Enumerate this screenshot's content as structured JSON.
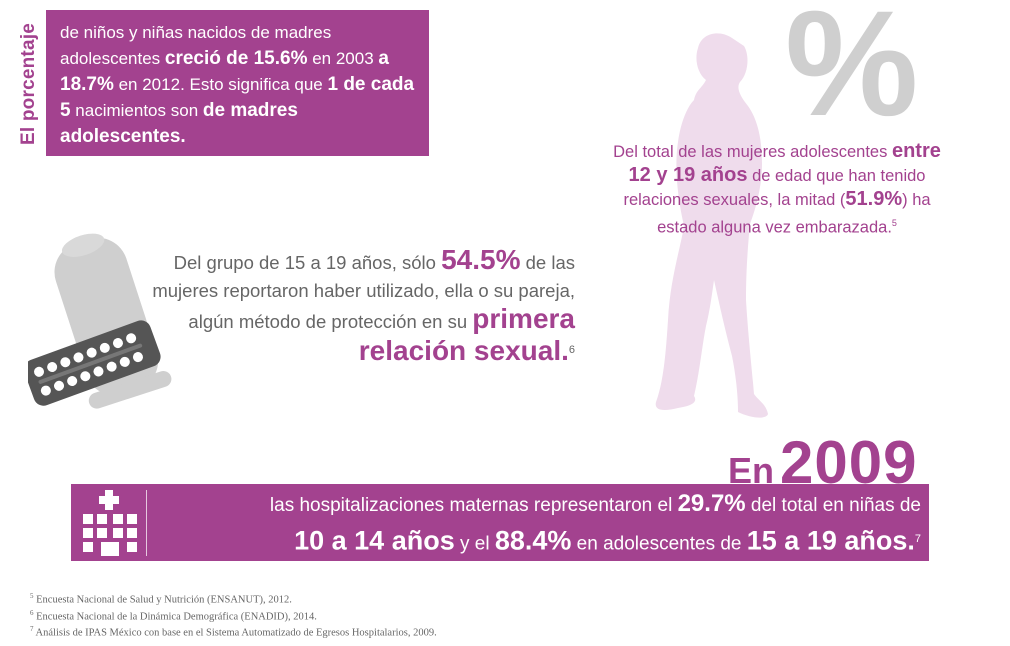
{
  "top_block": {
    "vertical_label": "El porcentaje",
    "t1": "de niños y niñas nacidos de madres adolescentes ",
    "t2": "creció de 15.6%",
    "t3": " en 2003 ",
    "t4": "a 18.7%",
    "t5": " en 2012",
    "t6": ". Esto significa que ",
    "t7": "1 de cada 5",
    "t8": " nacimientos son ",
    "t9": "de madres adolescentes."
  },
  "middle_block": {
    "t1": "Del grupo de 15 a 19 años, sólo ",
    "t2": "54.5%",
    "t3": " de las mujeres reportaron haber utilizado, ella o su pareja, algún método de protección en su ",
    "t4": "primera relación sexual.",
    "note": "6"
  },
  "right_block": {
    "percent_symbol": "%",
    "t1": "Del total de las mujeres adolescentes ",
    "t2": "entre 12 y 19 años",
    "t3": " de edad que han tenido relaciones sexuales, la mitad (",
    "t4": "51.9%",
    "t5": ") ha estado alguna vez embarazada.",
    "note": "5"
  },
  "year_block": {
    "en": "En",
    "year": "2009"
  },
  "bottom_bar": {
    "t1": "las hospitalizaciones maternas representaron el ",
    "t2": "29.7%",
    "t3": " del total en niñas de",
    "t4": "10 a 14 años",
    "t5": " y el ",
    "t6": "88.4%",
    "t7": " en adolescentes de ",
    "t8": "15 a 19 años.",
    "note": "7"
  },
  "footnotes": [
    {
      "num": "5",
      "text": "Encuesta Nacional de Salud y Nutrición (ENSANUT), 2012."
    },
    {
      "num": "6",
      "text": "Encuesta Nacional de la Dinámica Demográfica (ENADID), 2014."
    },
    {
      "num": "7",
      "text": "Análisis de IPAS México con base en el Sistema Automatizado de Egresos Hospitalarios, 2009."
    }
  ],
  "colors": {
    "accent": "#a3428f",
    "silhouette": "#efdcec",
    "grey_graphic": "#cfcfcf",
    "pill_pack": "#555555"
  },
  "icons": [
    "condom-icon",
    "pill-pack-icon",
    "woman-silhouette-icon",
    "hospital-icon"
  ]
}
